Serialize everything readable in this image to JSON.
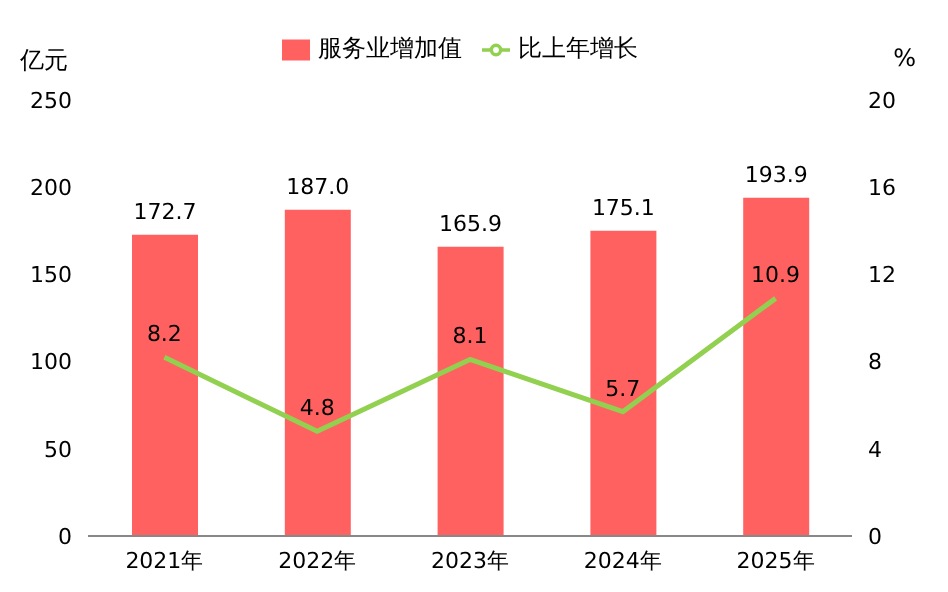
{
  "chart_data": {
    "type": "bar",
    "categories": [
      "2021年",
      "2022年",
      "2023年",
      "2024年",
      "2025年"
    ],
    "ylabel": "亿元",
    "y2label": "%",
    "ylim": [
      0,
      250
    ],
    "yticks": [
      0,
      50,
      100,
      150,
      200,
      250
    ],
    "y2lim": [
      0,
      20
    ],
    "y2ticks": [
      0,
      4,
      8,
      12,
      16,
      20
    ],
    "series": [
      {
        "name": "服务业增加值",
        "color": "#ff6161",
        "values": [
          172.7,
          187.0,
          165.9,
          175.1,
          193.9
        ],
        "value_labels": [
          "172.7",
          "187.0",
          "165.9",
          "175.1",
          "193.9"
        ]
      },
      {
        "name": "比上年增长",
        "type": "line",
        "axis": "y2",
        "color": "#92d050",
        "values": [
          8.2,
          4.8,
          8.1,
          5.7,
          10.9
        ],
        "value_labels": [
          "8.2",
          "4.8",
          "8.1",
          "5.7",
          "10.9"
        ]
      }
    ],
    "legend": "top",
    "marker": "none",
    "grid": false
  }
}
